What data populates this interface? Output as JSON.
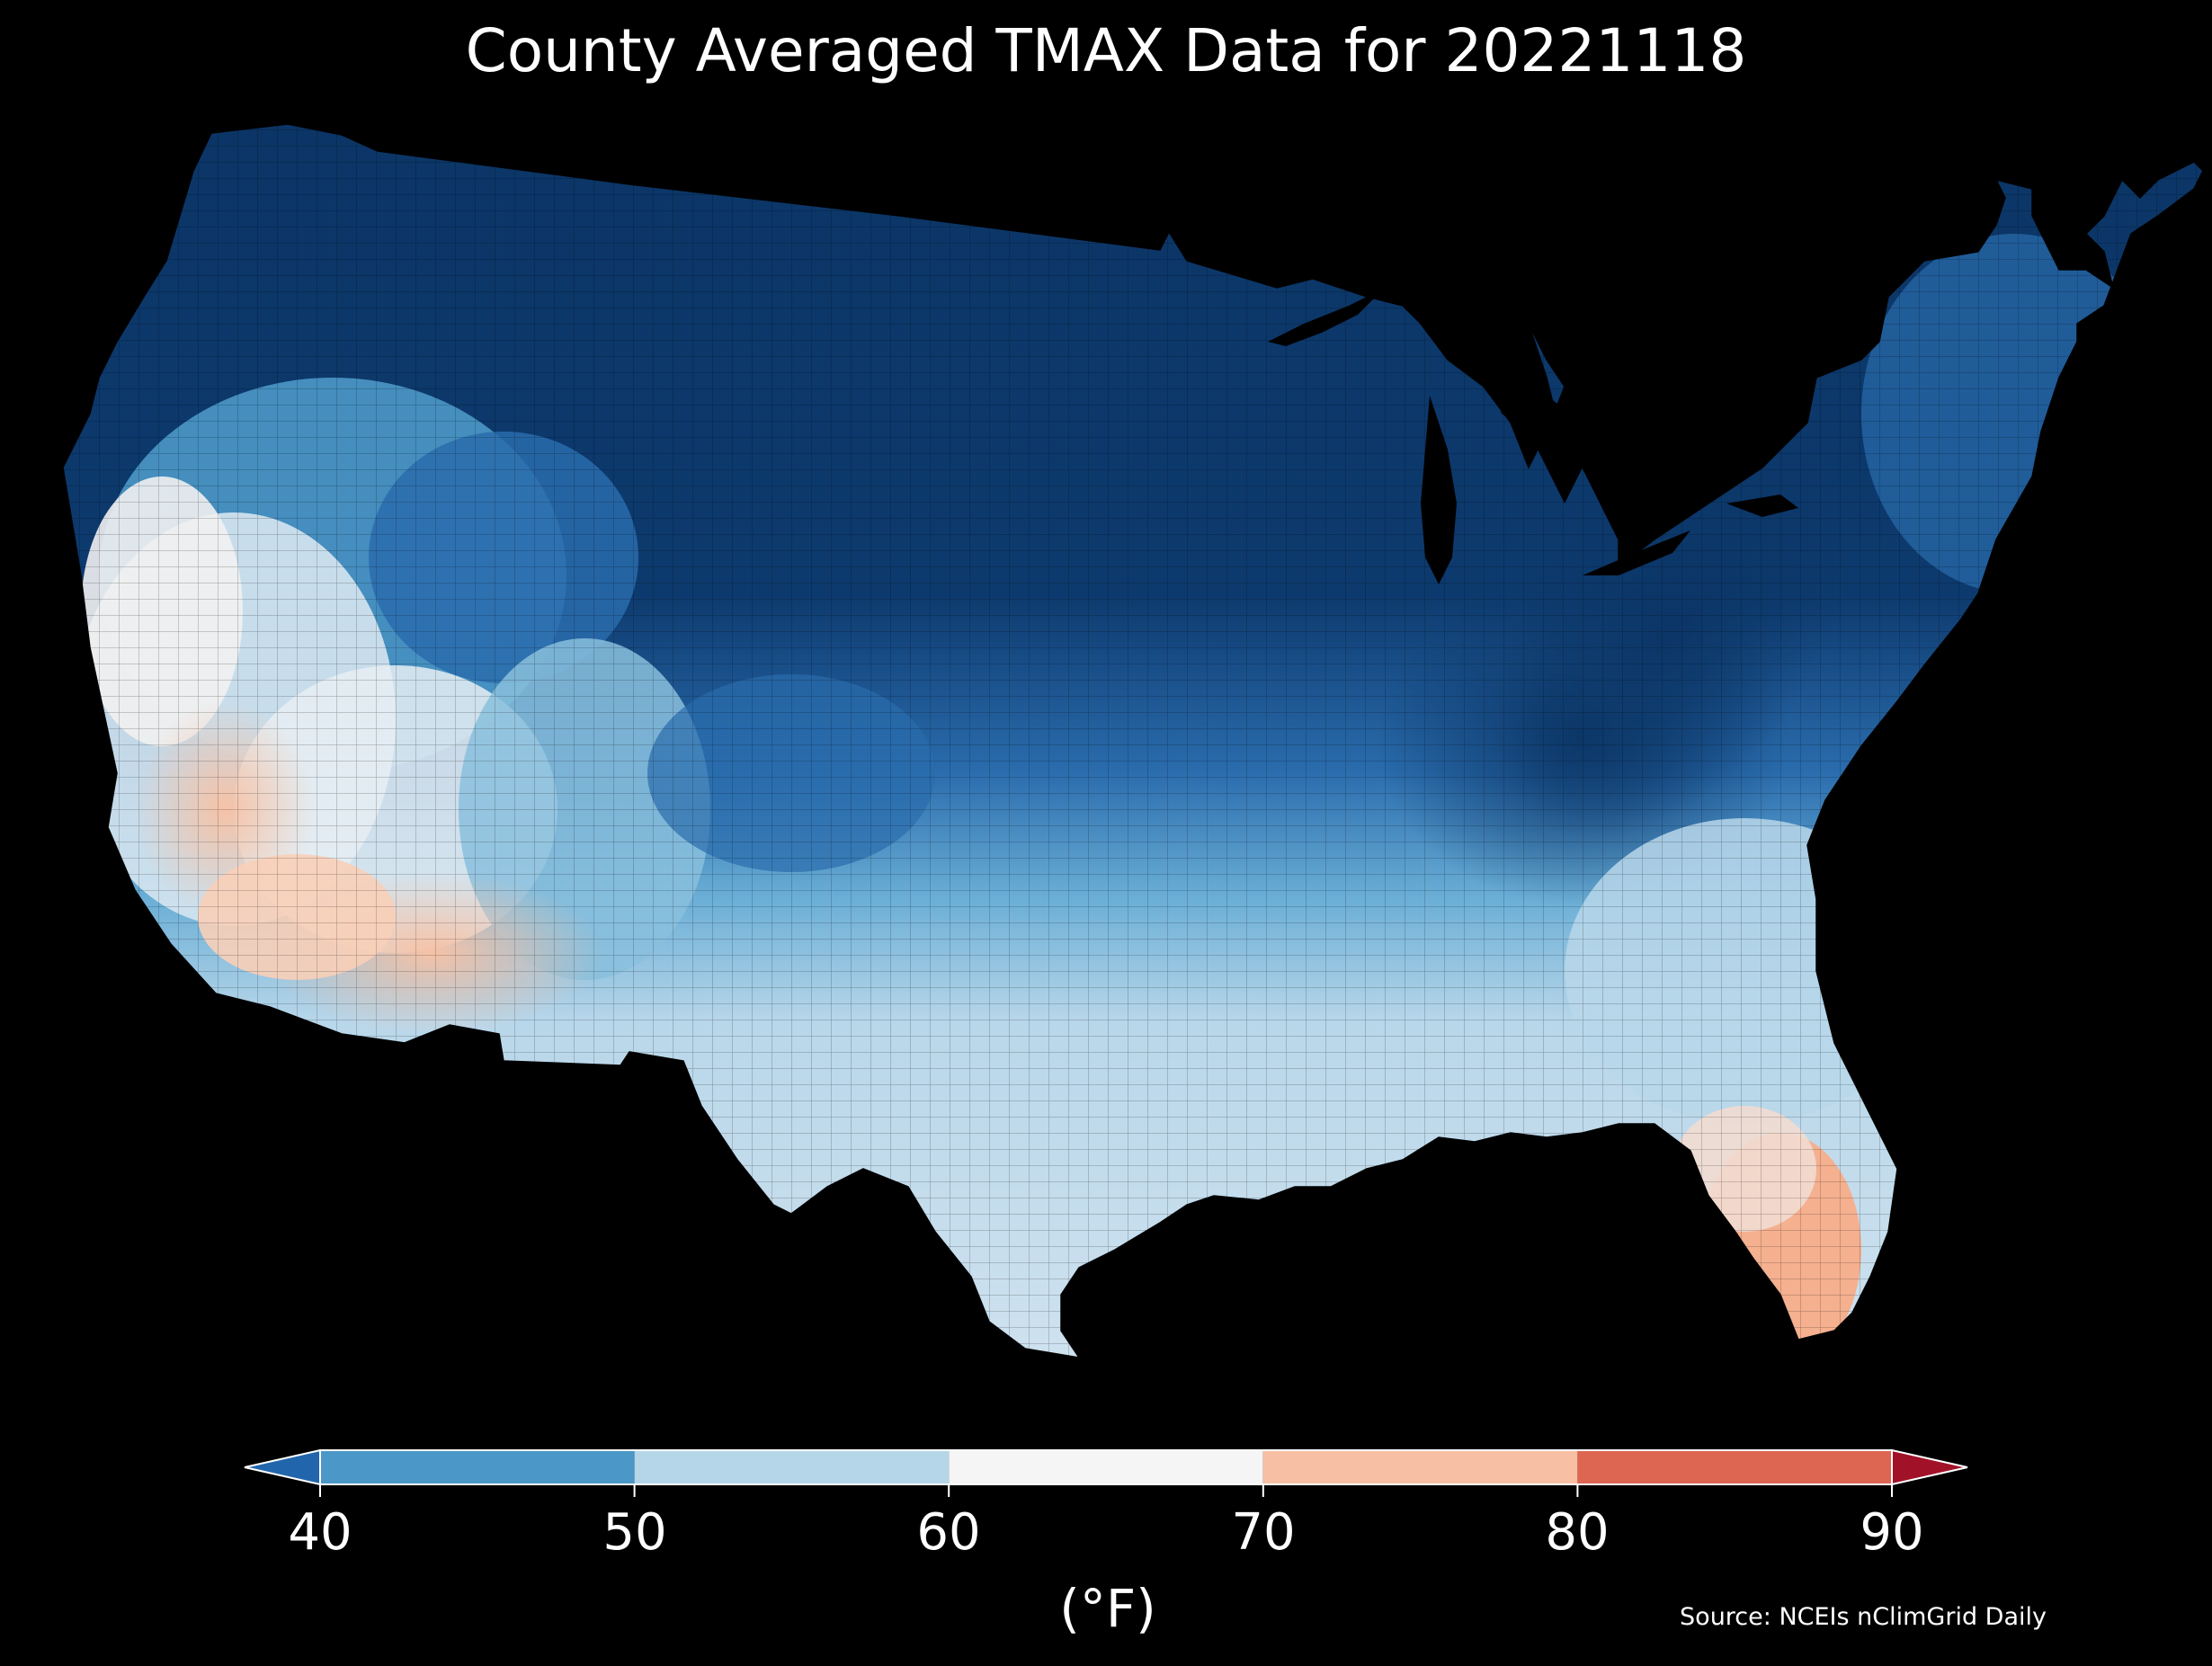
{
  "title": "County Averaged TMAX Data for 20221118",
  "colorbar": {
    "ticks": [
      "40",
      "50",
      "60",
      "70",
      "80",
      "90"
    ],
    "unit": "(°F)",
    "bins": [
      {
        "from": 40,
        "to": 50,
        "color": "#4b98c8"
      },
      {
        "from": 50,
        "to": 60,
        "color": "#b5d6e8"
      },
      {
        "from": 60,
        "to": 70,
        "color": "#f5f5f5"
      },
      {
        "from": 70,
        "to": 80,
        "color": "#f7bfa3"
      },
      {
        "from": 80,
        "to": 90,
        "color": "#dc6651"
      }
    ],
    "under_color": "#2166ac",
    "over_color": "#a11228"
  },
  "source": "Source: NCEIs nClimGrid Daily",
  "colors": {
    "background": "#000000",
    "coldest": "#0b3566",
    "cold": "#1f5da0",
    "cool": "#4b98c8",
    "mild": "#b5d6e8",
    "neutral": "#f2f2f2",
    "warm": "#f7c6ab",
    "hot": "#eea082"
  }
}
